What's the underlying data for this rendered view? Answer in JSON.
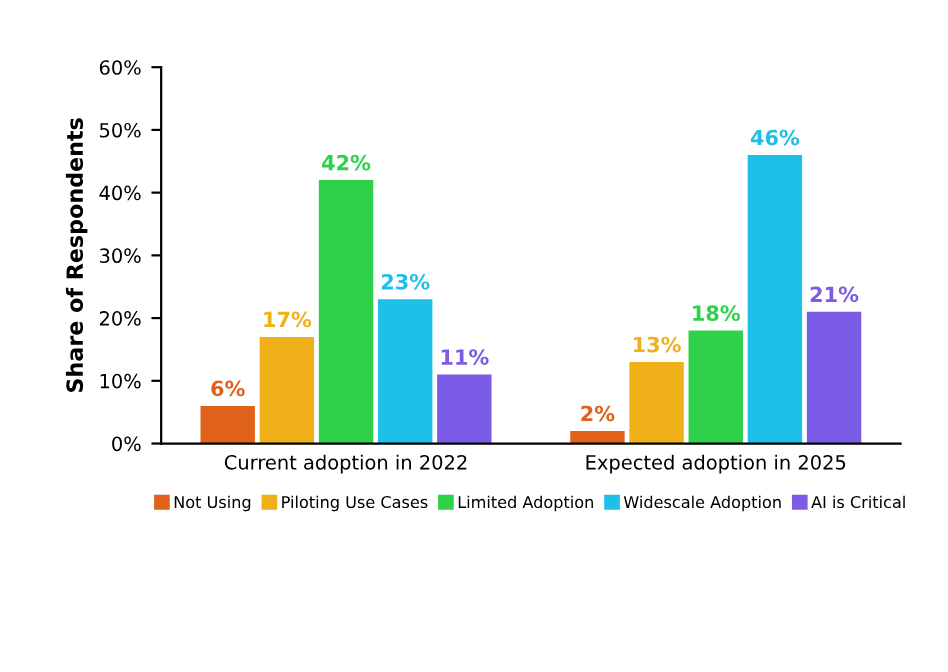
{
  "chart_data": {
    "type": "bar",
    "ylabel": "Share of Respondents",
    "categories": [
      "Current adoption in 2022",
      "Expected adoption in 2025"
    ],
    "series": [
      {
        "name": "Not Using",
        "color": "#e0621a",
        "values": [
          6,
          2
        ],
        "value_labels": [
          "6%",
          "2%"
        ]
      },
      {
        "name": "Piloting Use Cases",
        "color": "#f0b01a",
        "values": [
          17,
          13
        ],
        "value_labels": [
          "17%",
          "13%"
        ]
      },
      {
        "name": "Limited Adoption",
        "color": "#2fd14a",
        "values": [
          42,
          18
        ],
        "value_labels": [
          "42%",
          "18%"
        ]
      },
      {
        "name": "Widescale Adoption",
        "color": "#1fc0e8",
        "values": [
          23,
          46
        ],
        "value_labels": [
          "23%",
          "46%"
        ]
      },
      {
        "name": "AI is Critical",
        "color": "#7b5ce6",
        "values": [
          11,
          21
        ],
        "value_labels": [
          "11%",
          "21%"
        ]
      }
    ],
    "ylim": [
      0,
      60
    ],
    "yticks": [
      {
        "value": 0,
        "label": "0%"
      },
      {
        "value": 10,
        "label": "10%"
      },
      {
        "value": 20,
        "label": "20%"
      },
      {
        "value": 30,
        "label": "30%"
      },
      {
        "value": 40,
        "label": "40%"
      },
      {
        "value": 50,
        "label": "50%"
      },
      {
        "value": 60,
        "label": "60%"
      }
    ],
    "grid": false,
    "legend": "bottom"
  }
}
